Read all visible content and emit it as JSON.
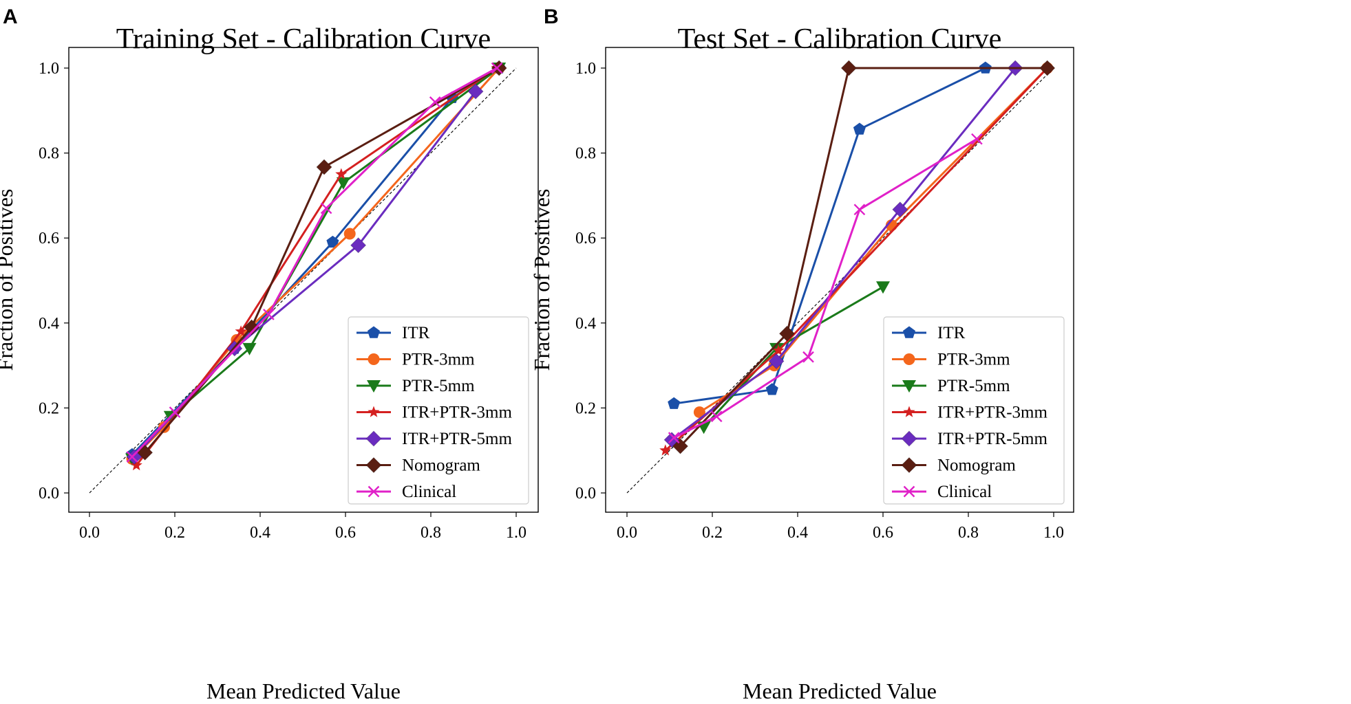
{
  "chart_data": [
    {
      "panel": "A",
      "type": "line",
      "title": "Training Set - Calibration Curve",
      "xlabel": "Mean Predicted Value",
      "ylabel": "Fraction of Positives",
      "xlim": [
        0,
        1
      ],
      "ylim": [
        0,
        1
      ],
      "xticks": [
        "0.0",
        "0.2",
        "0.4",
        "0.6",
        "0.8",
        "1.0"
      ],
      "yticks": [
        "0.0",
        "0.2",
        "0.4",
        "0.6",
        "0.8",
        "1.0"
      ],
      "reference_line": "perfect calibration (dashed diagonal)",
      "legend_position": "lower-right",
      "series": [
        {
          "name": "ITR",
          "color": "#1a4fa8",
          "marker": "pentagon",
          "x": [
            0.1,
            0.34,
            0.57,
            0.85,
            0.96
          ],
          "y": [
            0.09,
            0.34,
            0.59,
            0.93,
            1.0
          ]
        },
        {
          "name": "PTR-3mm",
          "color": "#f4661c",
          "marker": "circle",
          "x": [
            0.1,
            0.175,
            0.345,
            0.61,
            0.96
          ],
          "y": [
            0.08,
            0.155,
            0.36,
            0.61,
            1.0
          ]
        },
        {
          "name": "PTR-5mm",
          "color": "#1a7a1a",
          "marker": "triangle-down",
          "x": [
            0.1,
            0.19,
            0.375,
            0.595,
            0.96
          ],
          "y": [
            0.08,
            0.18,
            0.34,
            0.73,
            1.0
          ]
        },
        {
          "name": "ITR+PTR-3mm",
          "color": "#d42020",
          "marker": "star",
          "x": [
            0.11,
            0.355,
            0.59,
            0.955
          ],
          "y": [
            0.065,
            0.38,
            0.75,
            1.0
          ]
        },
        {
          "name": "ITR+PTR-5mm",
          "color": "#6a2cbf",
          "marker": "diamond",
          "x": [
            0.105,
            0.34,
            0.63,
            0.905
          ],
          "y": [
            0.085,
            0.34,
            0.583,
            0.945
          ]
        },
        {
          "name": "Nomogram",
          "color": "#5a1e12",
          "marker": "diamond",
          "x": [
            0.13,
            0.38,
            0.55,
            0.96
          ],
          "y": [
            0.095,
            0.39,
            0.767,
            1.0
          ]
        },
        {
          "name": "Clinical",
          "color": "#e020c8",
          "marker": "x",
          "x": [
            0.1,
            0.2,
            0.42,
            0.555,
            0.81,
            0.955
          ],
          "y": [
            0.085,
            0.19,
            0.42,
            0.67,
            0.92,
            1.0
          ]
        }
      ]
    },
    {
      "panel": "B",
      "type": "line",
      "title": "Test Set - Calibration Curve",
      "xlabel": "Mean Predicted Value",
      "ylabel": "Fraction of Positives",
      "xlim": [
        0,
        1
      ],
      "ylim": [
        0,
        1
      ],
      "xticks": [
        "0.0",
        "0.2",
        "0.4",
        "0.6",
        "0.8",
        "1.0"
      ],
      "yticks": [
        "0.0",
        "0.2",
        "0.4",
        "0.6",
        "0.8",
        "1.0"
      ],
      "reference_line": "perfect calibration (dashed diagonal)",
      "legend_position": "lower-right",
      "series": [
        {
          "name": "ITR",
          "color": "#1a4fa8",
          "marker": "pentagon",
          "x": [
            0.11,
            0.34,
            0.545,
            0.84
          ],
          "y": [
            0.21,
            0.243,
            0.856,
            1.0
          ]
        },
        {
          "name": "PTR-3mm",
          "color": "#f4661c",
          "marker": "circle",
          "x": [
            0.17,
            0.345,
            0.62,
            0.985
          ],
          "y": [
            0.19,
            0.3,
            0.63,
            1.0
          ]
        },
        {
          "name": "PTR-5mm",
          "color": "#1a7a1a",
          "marker": "triangle-down",
          "x": [
            0.18,
            0.35,
            0.6
          ],
          "y": [
            0.155,
            0.34,
            0.485
          ]
        },
        {
          "name": "ITR+PTR-3mm",
          "color": "#d42020",
          "marker": "star",
          "x": [
            0.09,
            0.355,
            0.985
          ],
          "y": [
            0.1,
            0.335,
            1.0
          ]
        },
        {
          "name": "ITR+PTR-5mm",
          "color": "#6a2cbf",
          "marker": "diamond",
          "x": [
            0.105,
            0.35,
            0.64,
            0.91
          ],
          "y": [
            0.125,
            0.31,
            0.667,
            1.0
          ]
        },
        {
          "name": "Nomogram",
          "color": "#5a1e12",
          "marker": "diamond",
          "x": [
            0.125,
            0.375,
            0.52,
            0.985
          ],
          "y": [
            0.11,
            0.375,
            1.0,
            1.0
          ]
        },
        {
          "name": "Clinical",
          "color": "#e020c8",
          "marker": "x",
          "x": [
            0.11,
            0.21,
            0.425,
            0.545,
            0.82
          ],
          "y": [
            0.13,
            0.18,
            0.32,
            0.667,
            0.833
          ]
        }
      ]
    }
  ]
}
